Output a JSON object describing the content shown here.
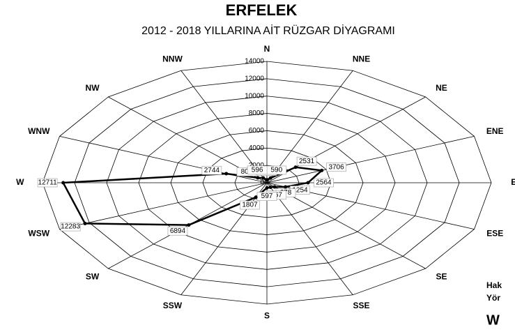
{
  "chart_data": {
    "type": "radar",
    "title": "ERFELEK",
    "subtitle": "2012 - 2018 YILLARINA AİT RÜZGAR DİYAGRAMI",
    "categories": [
      "N",
      "NNE",
      "NE",
      "ENE",
      "E",
      "ESE",
      "SE",
      "SSE",
      "S",
      "SSW",
      "SW",
      "WSW",
      "W",
      "WNW",
      "NW",
      "NNW"
    ],
    "values": [
      346,
      590,
      2531,
      3706,
      2564,
      1254,
      678,
      567,
      597,
      1807,
      6894,
      12283,
      12711,
      2744,
      805,
      596
    ],
    "color": "#000000",
    "ylim": [
      0,
      14000
    ],
    "yticks": [
      0,
      2000,
      4000,
      6000,
      8000,
      10000,
      12000,
      14000
    ],
    "grid": true,
    "notes": [
      "Hak",
      "Yör",
      "W"
    ]
  }
}
